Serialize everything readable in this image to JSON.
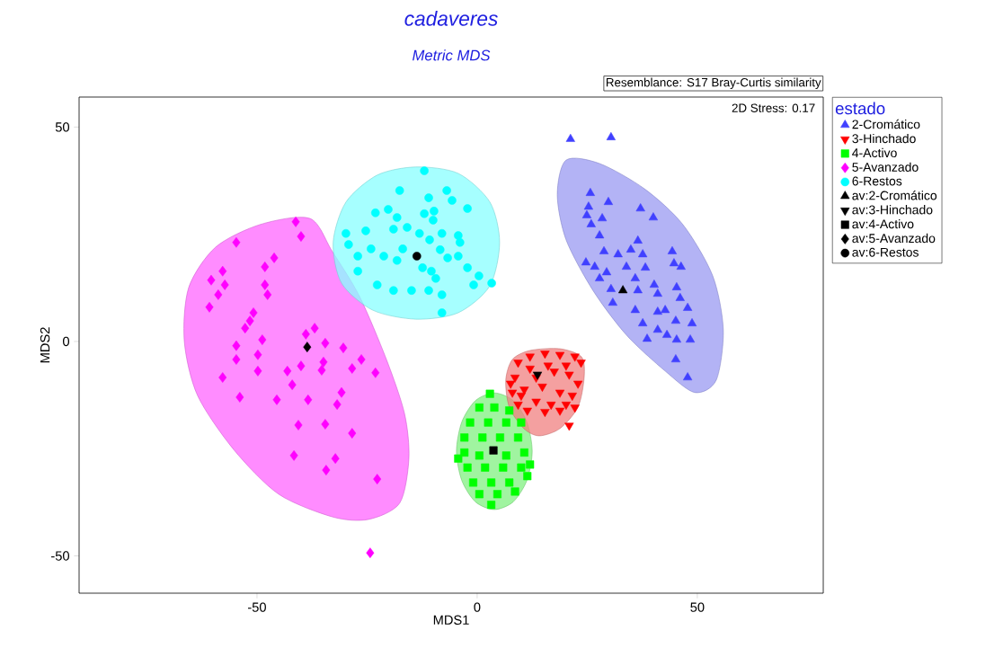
{
  "chart_data": {
    "type": "scatter",
    "title": "cadaveres",
    "subtitle": "Metric MDS",
    "xlabel": "MDS1",
    "ylabel": "MDS2",
    "legend_title": "estado",
    "annotations": [
      "Resemblance: S17 Bray-Curtis similarity",
      "2D Stress: 0.17"
    ],
    "xlim": [
      -90.4,
      78.6
    ],
    "ylim": [
      -58.7,
      57.0
    ],
    "xticks": [
      -50,
      0,
      50
    ],
    "yticks": [
      -50,
      0,
      50
    ],
    "grid": false,
    "legend": "right",
    "series": [
      {
        "type": "area",
        "color": "#ff66ff",
        "x": [
          -38.0,
          -49.2,
          -59.4,
          -65.5,
          -66.5,
          -63.5,
          -55.3,
          -45.1,
          -32.9,
          -24.7,
          -17.6,
          -15.5,
          -16.5,
          -20.6,
          -26.7,
          -32.9
        ],
        "values": [
          28.7,
          27.3,
          22.0,
          12.6,
          0,
          -12.6,
          -25.2,
          -35.6,
          -40.9,
          -41.5,
          -37.7,
          -27.3,
          -16.8,
          -4.2,
          10.5,
          21.0
        ]
      },
      {
        "type": "area",
        "color": "#88ffff",
        "x": [
          -13.9,
          -4.3,
          2.9,
          5.1,
          2.9,
          -4.3,
          -13.9,
          -23.7,
          -30.8,
          -32.7,
          -29.8,
          -22.7
        ],
        "values": [
          40.7,
          39.2,
          32.5,
          23.1,
          13.0,
          6.7,
          5.2,
          7.3,
          13.6,
          23.1,
          32.5,
          38.8
        ]
      },
      {
        "type": "area",
        "color": "#9999f2",
        "x": [
          20.2,
          27.8,
          38.0,
          46.7,
          53.5,
          55.9,
          54.3,
          49.4,
          42.7,
          33.9,
          26.3,
          20.2,
          18.2
        ],
        "values": [
          42.3,
          41.5,
          35.6,
          27.3,
          15.3,
          2.7,
          -9.0,
          -11.9,
          -6.9,
          1.5,
          11.9,
          23.7,
          34.2
        ]
      },
      {
        "type": "area",
        "color": "#80f080",
        "x": [
          12.5,
          11.3,
          8.2,
          3.9,
          -0.4,
          -3.5,
          -4.7,
          -3.5,
          -0.4,
          3.9,
          8.2,
          11.3
        ],
        "values": [
          -25.6,
          -18.8,
          -13.8,
          -12.0,
          -13.8,
          -18.8,
          -25.6,
          -32.4,
          -37.4,
          -39.2,
          -37.4,
          -32.4
        ]
      },
      {
        "type": "area",
        "color": "#f08080",
        "x": [
          8.0,
          12.0,
          18.8,
          23.7,
          24.3,
          22.9,
          18.8,
          14.1,
          10.6,
          7.3,
          6.5
        ],
        "values": [
          -4.2,
          -2.1,
          -1.7,
          -3.6,
          -8.4,
          -15.3,
          -20.3,
          -22.0,
          -20.3,
          -15.3,
          -9.0
        ]
      },
      {
        "name": "2-Cromático",
        "color": "#4040ff",
        "marker": "triangle",
        "x": [
          21.2,
          30.4,
          25.7,
          29.8,
          25.3,
          24.9,
          28.4,
          37.1,
          40.0,
          25.9,
          27.8,
          36.5,
          24.7,
          28.8,
          32.0,
          34.9,
          37.6,
          44.3,
          26.7,
          29.4,
          33.9,
          38.2,
          44.7,
          46.3,
          27.8,
          35.9,
          40.2,
          30.4,
          36.5,
          41.0,
          45.3,
          46.1,
          30.8,
          35.9,
          41.0,
          42.7,
          47.8,
          37.6,
          41.0,
          45.1,
          48.8,
          38.6,
          43.1,
          45.3,
          48.4,
          45.1,
          47.8
        ],
        "values": [
          47.2,
          47.6,
          34.6,
          32.5,
          31.4,
          29.4,
          28.7,
          31.0,
          28.9,
          27.3,
          24.7,
          23.5,
          18.4,
          21.0,
          20.3,
          21.4,
          20.3,
          21.0,
          17.4,
          16.1,
          17.4,
          17.2,
          18.2,
          17.4,
          14.7,
          14.7,
          13.2,
          12.2,
          11.9,
          11.1,
          12.6,
          10.1,
          9.0,
          7.3,
          6.9,
          7.3,
          7.8,
          4.2,
          2.7,
          4.8,
          4.2,
          0.6,
          1.5,
          0.4,
          0.4,
          -4.2,
          -8.4
        ]
      },
      {
        "name": "3-Hinchado",
        "color": "#ff0000",
        "marker": "triangle_down",
        "x": [
          9.3,
          12.0,
          15.4,
          18.8,
          22.2,
          23.6,
          8.6,
          13.4,
          17.5,
          20.9,
          22.9,
          8.0,
          10.7,
          14.8,
          18.8,
          21.6,
          9.3,
          13.4,
          16.8,
          20.2,
          11.4,
          15.4,
          18.8,
          20.9,
          10.0,
          22.2,
          12.0,
          16.1,
          20.2,
          7.6
        ],
        "values": [
          -4.9,
          -3.5,
          -2.8,
          -3.1,
          -3.5,
          -4.9,
          -8.4,
          -8.4,
          -7.0,
          -7.7,
          -9.8,
          -11.9,
          -11.2,
          -10.5,
          -11.9,
          -12.6,
          -14.7,
          -14.0,
          -14.7,
          -14.7,
          -16.1,
          -16.4,
          -16.1,
          -19.6,
          -12.6,
          -15.4,
          -6.3,
          -5.6,
          -5.6,
          -9.8
        ]
      },
      {
        "name": "4-Activo",
        "color": "#00ff00",
        "marker": "square",
        "x": [
          2.9,
          0.5,
          3.9,
          7.3,
          -1.6,
          2.5,
          6.6,
          10.0,
          -2.9,
          1.2,
          5.2,
          9.3,
          -2.9,
          0.5,
          6.6,
          10.7,
          -2.2,
          1.8,
          5.9,
          10.0,
          -0.9,
          3.2,
          7.3,
          11.4,
          0.5,
          4.6,
          8.6,
          3.2,
          -4.3,
          12.0
        ],
        "values": [
          -12.2,
          -15.4,
          -15.4,
          -16.1,
          -18.9,
          -18.9,
          -18.9,
          -18.9,
          -22.4,
          -22.4,
          -22.4,
          -22.4,
          -25.9,
          -26.6,
          -26.6,
          -25.9,
          -29.4,
          -29.4,
          -29.4,
          -29.4,
          -32.9,
          -32.9,
          -32.9,
          -31.4,
          -35.6,
          -35.6,
          -35.0,
          -38.1,
          -27.3,
          -28.7
        ]
      },
      {
        "name": "5-Avanzado",
        "color": "#ff00ff",
        "marker": "diamond",
        "x": [
          -41.2,
          -40.0,
          -54.7,
          -46.1,
          -48.2,
          -57.8,
          -60.4,
          -57.3,
          -48.2,
          -58.8,
          -47.6,
          -60.8,
          -50.8,
          -51.6,
          -52.7,
          -36.9,
          -38.9,
          -54.7,
          -48.8,
          -34.5,
          -30.4,
          -54.7,
          -49.8,
          -40.0,
          -34.9,
          -26.3,
          -28.4,
          -43.1,
          -57.8,
          -49.8,
          -23.1,
          -35.3,
          -42.0,
          -53.9,
          -45.5,
          -38.4,
          -30.8,
          -31.8,
          -40.6,
          -34.5,
          -28.4,
          -41.6,
          -32.2,
          -34.3,
          -22.7,
          -24.3
        ],
        "values": [
          27.9,
          24.5,
          23.1,
          19.5,
          17.4,
          16.4,
          14.3,
          13.2,
          13.2,
          10.9,
          10.9,
          8.0,
          6.7,
          4.8,
          3.1,
          3.1,
          1.7,
          -1.0,
          0.4,
          -0.4,
          -1.5,
          -4.2,
          -3.1,
          -5.7,
          -4.8,
          -4.2,
          -6.3,
          -6.9,
          -8.4,
          -6.9,
          -7.3,
          -6.7,
          -10.1,
          -13.0,
          -13.6,
          -13.6,
          -11.9,
          -14.7,
          -19.5,
          -19.3,
          -21.4,
          -26.6,
          -27.3,
          -30.0,
          -32.1,
          -49.3
        ]
      },
      {
        "name": "6-Restos",
        "color": "#00ffff",
        "marker": "circle",
        "x": [
          -12.0,
          -17.6,
          -6.9,
          -11.0,
          -5.7,
          -2.2,
          -23.1,
          -20.2,
          -12.0,
          -9.8,
          -18.2,
          -10.0,
          -25.3,
          -29.8,
          -19.0,
          -15.9,
          -13.1,
          -8.0,
          -4.3,
          -29.2,
          -10.8,
          -24.1,
          -16.9,
          -8.4,
          -3.9,
          -27.1,
          -21.2,
          -18.2,
          -6.7,
          -4.3,
          -12.4,
          -10.4,
          -27.1,
          -2.2,
          0.4,
          -9.4,
          -22.7,
          -19.0,
          -14.9,
          -11.0,
          -8.0,
          -0.8,
          3.3,
          -8.0
        ],
        "values": [
          39.8,
          35.2,
          35.2,
          33.5,
          32.9,
          31.0,
          30.0,
          30.8,
          29.8,
          30.4,
          28.9,
          28.3,
          25.8,
          25.2,
          26.2,
          26.6,
          25.2,
          25.2,
          24.7,
          22.6,
          23.7,
          21.6,
          21.6,
          21.4,
          23.1,
          19.9,
          19.9,
          18.9,
          19.5,
          19.9,
          17.2,
          16.4,
          16.4,
          17.2,
          15.3,
          14.7,
          13.2,
          11.9,
          11.9,
          11.9,
          10.9,
          13.2,
          13.6,
          6.7
        ]
      },
      {
        "name": "av:2-Cromático",
        "color": "#000000",
        "marker": "triangle",
        "x": [
          33.1
        ],
        "values": [
          11.9
        ]
      },
      {
        "name": "av:3-Hinchado",
        "color": "#000000",
        "marker": "triangle_down",
        "x": [
          13.7
        ],
        "values": [
          -7.7
        ]
      },
      {
        "name": "av:4-Activo",
        "color": "#000000",
        "marker": "square",
        "x": [
          3.7
        ],
        "values": [
          -25.4
        ]
      },
      {
        "name": "av:5-Avanzado",
        "color": "#000000",
        "marker": "diamond",
        "x": [
          -38.6
        ],
        "values": [
          -1.3
        ]
      },
      {
        "name": "av:6-Restos",
        "color": "#000000",
        "marker": "circle",
        "x": [
          -13.7
        ],
        "values": [
          19.9
        ]
      }
    ]
  }
}
